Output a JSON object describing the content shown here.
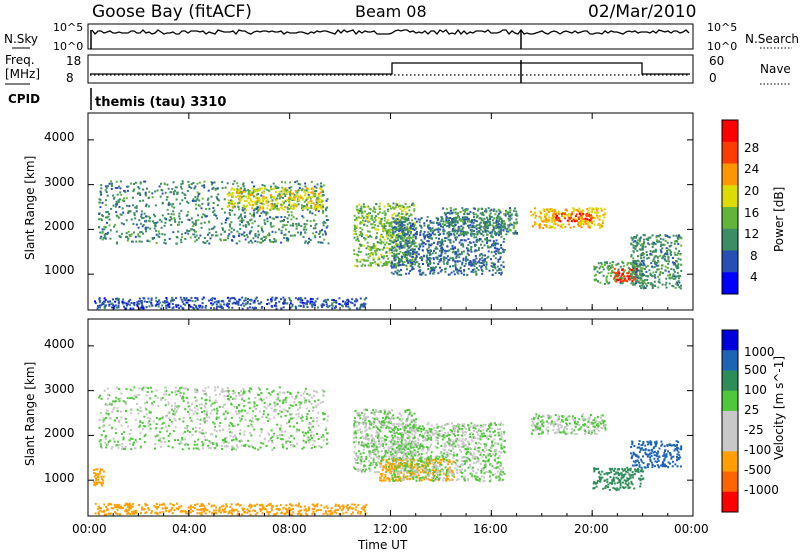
{
  "header": {
    "title": "Goose Bay (fitACF)",
    "beam": "Beam 08",
    "date": "02/Mar/2010"
  },
  "strip1": {
    "left_label": "N.Sky",
    "right_label": "N.Search",
    "left_ticks": [
      "10^5",
      "10^0"
    ],
    "right_ticks": [
      "10^5",
      "10^0"
    ]
  },
  "strip2": {
    "left_label_1": "Freq.",
    "left_label_2": "[MHz]",
    "right_label": "Nave",
    "left_ticks": [
      "18",
      "8"
    ],
    "right_ticks": [
      "60",
      "0"
    ]
  },
  "cpid": {
    "label": "CPID",
    "text": "themis (tau) 3310"
  },
  "colors": {
    "power_scale": [
      "#0000ff",
      "#2850b4",
      "#3c8c64",
      "#64b43c",
      "#dcdc00",
      "#ff9600",
      "#ff3c00",
      "#ff0000"
    ],
    "velocity_scale": [
      "#0000dc",
      "#1e64b4",
      "#2d8c5a",
      "#50c83c",
      "#c8c8c8",
      "#c8c8c8",
      "#ffa000",
      "#ff6400",
      "#ff0000"
    ]
  },
  "chart_data": [
    {
      "type": "heatmap",
      "title": "Power",
      "xlabel": "",
      "ylabel": "Slant Range [km]",
      "y_ticks": [
        "1000",
        "2000",
        "3000",
        "4000"
      ],
      "ylim": [
        200,
        4600
      ],
      "xlim": [
        0,
        24
      ],
      "colorbar_label": "Power [dB]",
      "colorbar_ticks": [
        "4",
        "8",
        "12",
        "16",
        "20",
        "24",
        "28"
      ],
      "regions": [
        {
          "t0": 0.4,
          "t1": 9.5,
          "r0": 1700,
          "r1": 3100,
          "value": 10
        },
        {
          "t0": 5.5,
          "t1": 9.3,
          "r0": 2450,
          "r1": 2950,
          "value": 18
        },
        {
          "t0": 10.5,
          "t1": 13.0,
          "r0": 1200,
          "r1": 2600,
          "value": 14
        },
        {
          "t0": 12.0,
          "t1": 16.5,
          "r0": 1000,
          "r1": 2300,
          "value": 8
        },
        {
          "t0": 14.0,
          "t1": 17.0,
          "r0": 1900,
          "r1": 2500,
          "value": 10
        },
        {
          "t0": 17.5,
          "t1": 20.5,
          "r0": 2050,
          "r1": 2500,
          "value": 20
        },
        {
          "t0": 18.5,
          "t1": 20.0,
          "r0": 2200,
          "r1": 2400,
          "value": 26
        },
        {
          "t0": 20.0,
          "t1": 22.0,
          "r0": 800,
          "r1": 1300,
          "value": 12
        },
        {
          "t0": 20.8,
          "t1": 21.8,
          "r0": 850,
          "r1": 1150,
          "value": 28
        },
        {
          "t0": 21.5,
          "t1": 23.5,
          "r0": 700,
          "r1": 1900,
          "value": 10
        },
        {
          "t0": 0.2,
          "t1": 11.0,
          "r0": 250,
          "r1": 500,
          "value": 6
        }
      ]
    },
    {
      "type": "heatmap",
      "title": "Velocity",
      "xlabel": "Time UT",
      "ylabel": "Slant Range [km]",
      "x_ticks": [
        "00:00",
        "04:00",
        "08:00",
        "12:00",
        "16:00",
        "20:00",
        "00:00"
      ],
      "y_ticks": [
        "1000",
        "2000",
        "3000",
        "4000"
      ],
      "ylim": [
        200,
        4600
      ],
      "xlim": [
        0,
        24
      ],
      "colorbar_label": "Velocity [m s^-1]",
      "colorbar_ticks": [
        "1000",
        "500",
        "100",
        "25",
        "-25",
        "-100",
        "-500",
        "-1000"
      ],
      "regions": [
        {
          "t0": 0.4,
          "t1": 9.5,
          "r0": 1700,
          "r1": 3100,
          "value": 0
        },
        {
          "t0": 10.5,
          "t1": 13.0,
          "r0": 1200,
          "r1": 2600,
          "value": 0
        },
        {
          "t0": 11.5,
          "t1": 14.5,
          "r0": 1000,
          "r1": 1500,
          "value": -300
        },
        {
          "t0": 12.0,
          "t1": 16.5,
          "r0": 1000,
          "r1": 2300,
          "value": 0
        },
        {
          "t0": 17.5,
          "t1": 20.5,
          "r0": 2050,
          "r1": 2500,
          "value": 0
        },
        {
          "t0": 20.0,
          "t1": 22.0,
          "r0": 800,
          "r1": 1300,
          "value": 60
        },
        {
          "t0": 21.5,
          "t1": 23.5,
          "r0": 1300,
          "r1": 1900,
          "value": 200
        },
        {
          "t0": 0.2,
          "t1": 0.6,
          "r0": 900,
          "r1": 1300,
          "value": -300
        },
        {
          "t0": 0.2,
          "t1": 11.0,
          "r0": 250,
          "r1": 500,
          "value": -150
        }
      ]
    }
  ]
}
